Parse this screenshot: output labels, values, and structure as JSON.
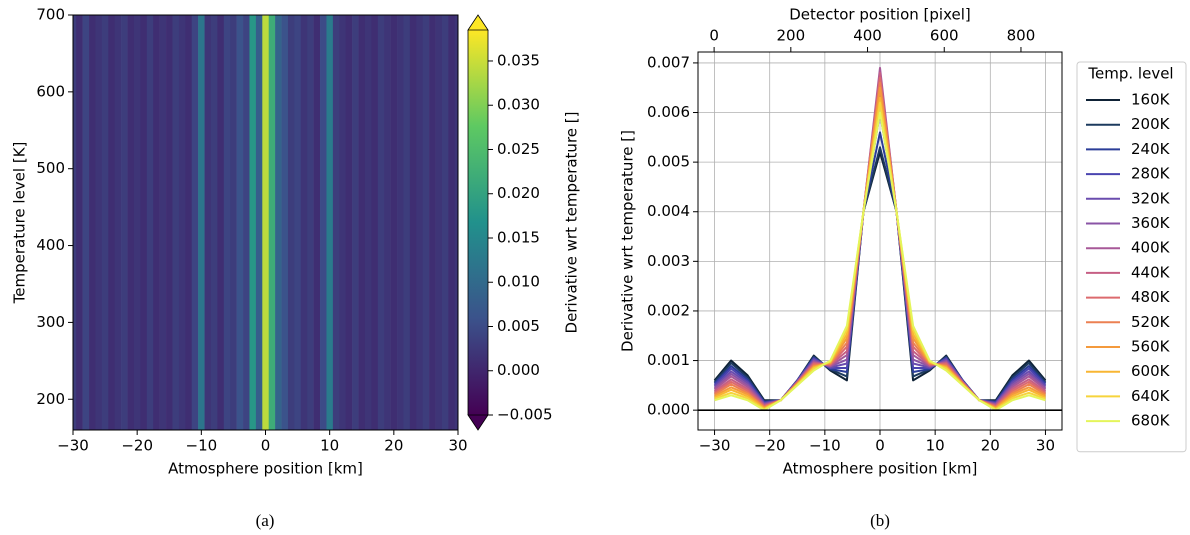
{
  "chart_data": [
    {
      "type": "heatmap",
      "xlabel": "Atmosphere position [km]",
      "ylabel": "Temperature level [K]",
      "colorbar_label": "Derivative wrt temperature []",
      "colormap": "viridis",
      "caption": "(a)",
      "x": [
        -30,
        -29,
        -28,
        -27,
        -26,
        -25,
        -24,
        -23,
        -22,
        -21,
        -20,
        -19,
        -18,
        -17,
        -16,
        -15,
        -14,
        -13,
        -12,
        -11,
        -10,
        -9,
        -8,
        -7,
        -6,
        -5,
        -4,
        -3,
        -2,
        -1,
        0,
        1,
        2,
        3,
        4,
        5,
        6,
        7,
        8,
        9,
        10,
        11,
        12,
        13,
        14,
        15,
        16,
        17,
        18,
        19,
        20,
        21,
        22,
        23,
        24,
        25,
        26,
        27,
        28,
        29,
        30
      ],
      "values": [
        0.003,
        0.001,
        0.004,
        0.001,
        0.002,
        0.003,
        0.001,
        0.002,
        0.003,
        0.001,
        0.002,
        0.001,
        0.003,
        0.001,
        0.002,
        0.001,
        0.003,
        0.002,
        0.001,
        0.004,
        0.012,
        0.002,
        0.003,
        0.001,
        0.004,
        0.003,
        0.006,
        0.004,
        0.018,
        0.008,
        0.034,
        0.022,
        0.009,
        0.006,
        0.003,
        0.004,
        0.002,
        0.003,
        0.001,
        0.005,
        0.013,
        0.003,
        0.002,
        0.001,
        0.003,
        0.001,
        0.002,
        0.001,
        0.003,
        0.002,
        0.001,
        0.002,
        0.003,
        0.001,
        0.002,
        0.003,
        0.001,
        0.002,
        0.003,
        0.001,
        0.002
      ],
      "xlim": [
        -30,
        30
      ],
      "ylim": [
        160,
        700
      ],
      "xticks": [
        {
          "value": -30,
          "label": "−30"
        },
        {
          "value": -20,
          "label": "−20"
        },
        {
          "value": -10,
          "label": "−10"
        },
        0,
        10,
        20,
        30
      ],
      "yticks": [
        200,
        300,
        400,
        500,
        600,
        700
      ],
      "clim": [
        -0.005,
        0.0385
      ],
      "cticks": [
        {
          "value": -0.005,
          "label": "−0.005"
        },
        {
          "value": 0,
          "label": "0.000"
        },
        0.005,
        {
          "value": 0.01,
          "label": "0.010"
        },
        0.015,
        {
          "value": 0.02,
          "label": "0.020"
        },
        0.025,
        {
          "value": 0.03,
          "label": "0.030"
        },
        0.035
      ]
    },
    {
      "type": "line",
      "xlabel": "Atmosphere position [km]",
      "ylabel": "Derivative wrt temperature []",
      "x2label": "Detector position [pixel]",
      "caption": "(b)",
      "legend_title": "Temp. level",
      "legend": "outside right",
      "grid": true,
      "hline": 0,
      "x": [
        -30,
        -27,
        -24,
        -21,
        -18,
        -15,
        -12,
        -9,
        -6,
        -3,
        0,
        3,
        6,
        9,
        12,
        15,
        18,
        21,
        24,
        27,
        30
      ],
      "series": [
        {
          "name": "160K",
          "color": "#0f2236",
          "values": [
            0.0006,
            0.001,
            0.0007,
            0.0002,
            0.0002,
            0.0006,
            0.0011,
            0.0008,
            0.0006,
            0.004,
            0.0052,
            0.004,
            0.0006,
            0.0008,
            0.0011,
            0.0006,
            0.0002,
            0.0002,
            0.0007,
            0.001,
            0.0006
          ]
        },
        {
          "name": "200K",
          "color": "#1c3a5e",
          "values": [
            0.00057,
            0.00095,
            0.00066,
            0.00018,
            0.0002,
            0.0006,
            0.00108,
            0.00082,
            0.00068,
            0.004,
            0.0053,
            0.004,
            0.00068,
            0.00082,
            0.00108,
            0.0006,
            0.0002,
            0.00018,
            0.00066,
            0.00095,
            0.00057
          ]
        },
        {
          "name": "240K",
          "color": "#2b3d98",
          "values": [
            0.00054,
            0.00089,
            0.00062,
            0.00017,
            0.0002,
            0.0006,
            0.00106,
            0.00083,
            0.00077,
            0.004,
            0.0056,
            0.004,
            0.00077,
            0.00083,
            0.00106,
            0.0006,
            0.0002,
            0.00017,
            0.00062,
            0.00089,
            0.00054
          ]
        },
        {
          "name": "280K",
          "color": "#4a44b0",
          "values": [
            0.00051,
            0.00084,
            0.00058,
            0.00015,
            0.0002,
            0.00059,
            0.00104,
            0.00085,
            0.00085,
            0.004,
            0.006,
            0.004,
            0.00085,
            0.00085,
            0.00104,
            0.00059,
            0.0002,
            0.00015,
            0.00058,
            0.00084,
            0.00051
          ]
        },
        {
          "name": "320K",
          "color": "#6a4cae",
          "values": [
            0.00048,
            0.00078,
            0.00055,
            0.00014,
            0.0002,
            0.00058,
            0.00102,
            0.00086,
            0.00094,
            0.004,
            0.0064,
            0.004,
            0.00094,
            0.00086,
            0.00102,
            0.00058,
            0.0002,
            0.00014,
            0.00055,
            0.00078,
            0.00048
          ]
        },
        {
          "name": "360K",
          "color": "#8a54a6",
          "values": [
            0.00045,
            0.00073,
            0.00051,
            0.00012,
            0.0002,
            0.00058,
            0.00099,
            0.00088,
            0.00102,
            0.004,
            0.0068,
            0.004,
            0.00102,
            0.00088,
            0.00099,
            0.00058,
            0.0002,
            0.00012,
            0.00051,
            0.00073,
            0.00045
          ]
        },
        {
          "name": "400K",
          "color": "#a75898",
          "values": [
            0.00042,
            0.00068,
            0.00047,
            0.00011,
            0.0002,
            0.00057,
            0.00097,
            0.00089,
            0.00111,
            0.004,
            0.0069,
            0.004,
            0.00111,
            0.00089,
            0.00097,
            0.00057,
            0.0002,
            0.00011,
            0.00047,
            0.00068,
            0.00042
          ]
        },
        {
          "name": "440K",
          "color": "#c65f84",
          "values": [
            0.00038,
            0.00062,
            0.00043,
            9e-05,
            0.0002,
            0.00056,
            0.00095,
            0.00091,
            0.00119,
            0.004,
            0.0068,
            0.004,
            0.00119,
            0.00091,
            0.00095,
            0.00056,
            0.0002,
            9e-05,
            0.00043,
            0.00062,
            0.00038
          ]
        },
        {
          "name": "480K",
          "color": "#dc6a6e",
          "values": [
            0.00035,
            0.00057,
            0.00039,
            8e-05,
            0.0002,
            0.00055,
            0.00093,
            0.00092,
            0.00128,
            0.004,
            0.0067,
            0.004,
            0.00128,
            0.00092,
            0.00093,
            0.00055,
            0.0002,
            8e-05,
            0.00039,
            0.00057,
            0.00035
          ]
        },
        {
          "name": "520K",
          "color": "#ec8052",
          "values": [
            0.00032,
            0.00052,
            0.00035,
            6e-05,
            0.0002,
            0.00054,
            0.0009,
            0.00094,
            0.00136,
            0.004,
            0.0066,
            0.004,
            0.00136,
            0.00094,
            0.0009,
            0.00054,
            0.0002,
            6e-05,
            0.00035,
            0.00052,
            0.00032
          ]
        },
        {
          "name": "560K",
          "color": "#f49a3c",
          "values": [
            0.00029,
            0.00046,
            0.00032,
            5e-05,
            0.0002,
            0.00053,
            0.00088,
            0.00095,
            0.00145,
            0.004,
            0.0065,
            0.004,
            0.00145,
            0.00095,
            0.00088,
            0.00053,
            0.0002,
            5e-05,
            0.00032,
            0.00046,
            0.00029
          ]
        },
        {
          "name": "600K",
          "color": "#f8b633",
          "values": [
            0.00026,
            0.00041,
            0.00028,
            3e-05,
            0.0002,
            0.00052,
            0.00086,
            0.00097,
            0.00153,
            0.004,
            0.0063,
            0.004,
            0.00153,
            0.00097,
            0.00086,
            0.00052,
            0.0002,
            3e-05,
            0.00028,
            0.00041,
            0.00026
          ]
        },
        {
          "name": "640K",
          "color": "#f6d43c",
          "values": [
            0.00023,
            0.00035,
            0.00024,
            2e-05,
            0.0002,
            0.00051,
            0.00084,
            0.00098,
            0.00162,
            0.004,
            0.0062,
            0.004,
            0.00162,
            0.00098,
            0.00084,
            0.00051,
            0.0002,
            2e-05,
            0.00024,
            0.00035,
            0.00023
          ]
        },
        {
          "name": "680K",
          "color": "#e4f55b",
          "values": [
            0.0002,
            0.0003,
            0.0002,
            0,
            0.0002,
            0.0005,
            0.0008,
            0.001,
            0.0017,
            0.004,
            0.006,
            0.004,
            0.0017,
            0.001,
            0.0008,
            0.0005,
            0.0002,
            0,
            0.0002,
            0.0003,
            0.0002
          ]
        }
      ],
      "xlim": [
        -33,
        33
      ],
      "ylim": [
        -0.0004,
        0.00722
      ],
      "xticks": [
        {
          "value": -30,
          "label": "−30"
        },
        {
          "value": -20,
          "label": "−20"
        },
        {
          "value": -10,
          "label": "−10"
        },
        0,
        10,
        20,
        30
      ],
      "yticks": [
        {
          "value": 0,
          "label": "0.000"
        },
        0.001,
        0.002,
        0.003,
        0.004,
        0.005,
        0.006,
        0.007
      ],
      "x2lim": [
        -42,
        907
      ],
      "x2ticks": [
        0,
        200,
        400,
        600,
        800
      ]
    }
  ]
}
